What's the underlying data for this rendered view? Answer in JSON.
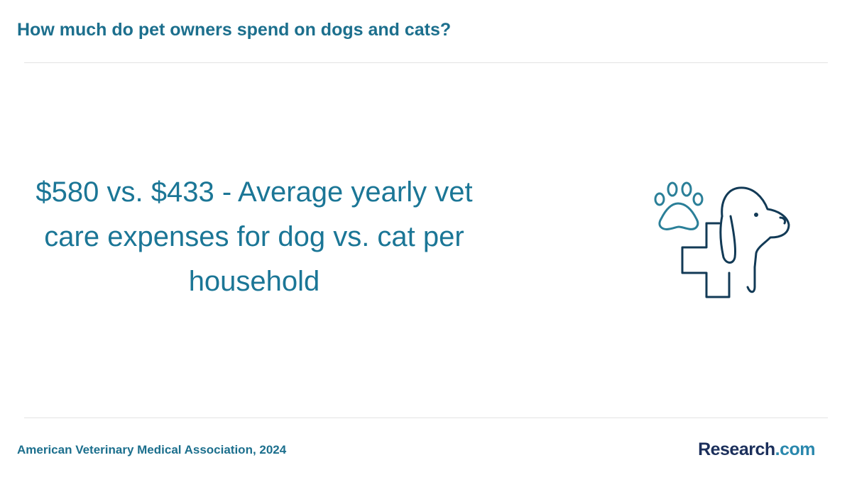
{
  "header": {
    "title": "How much do pet owners spend on dogs and cats?"
  },
  "statement": {
    "text": "$580 vs. $433 - Average yearly vet care expenses for dog vs. cat per household"
  },
  "footer": {
    "source": "American Veterinary Medical Association, 2024",
    "brand": {
      "name": "Research",
      "domain": ".com"
    }
  }
}
